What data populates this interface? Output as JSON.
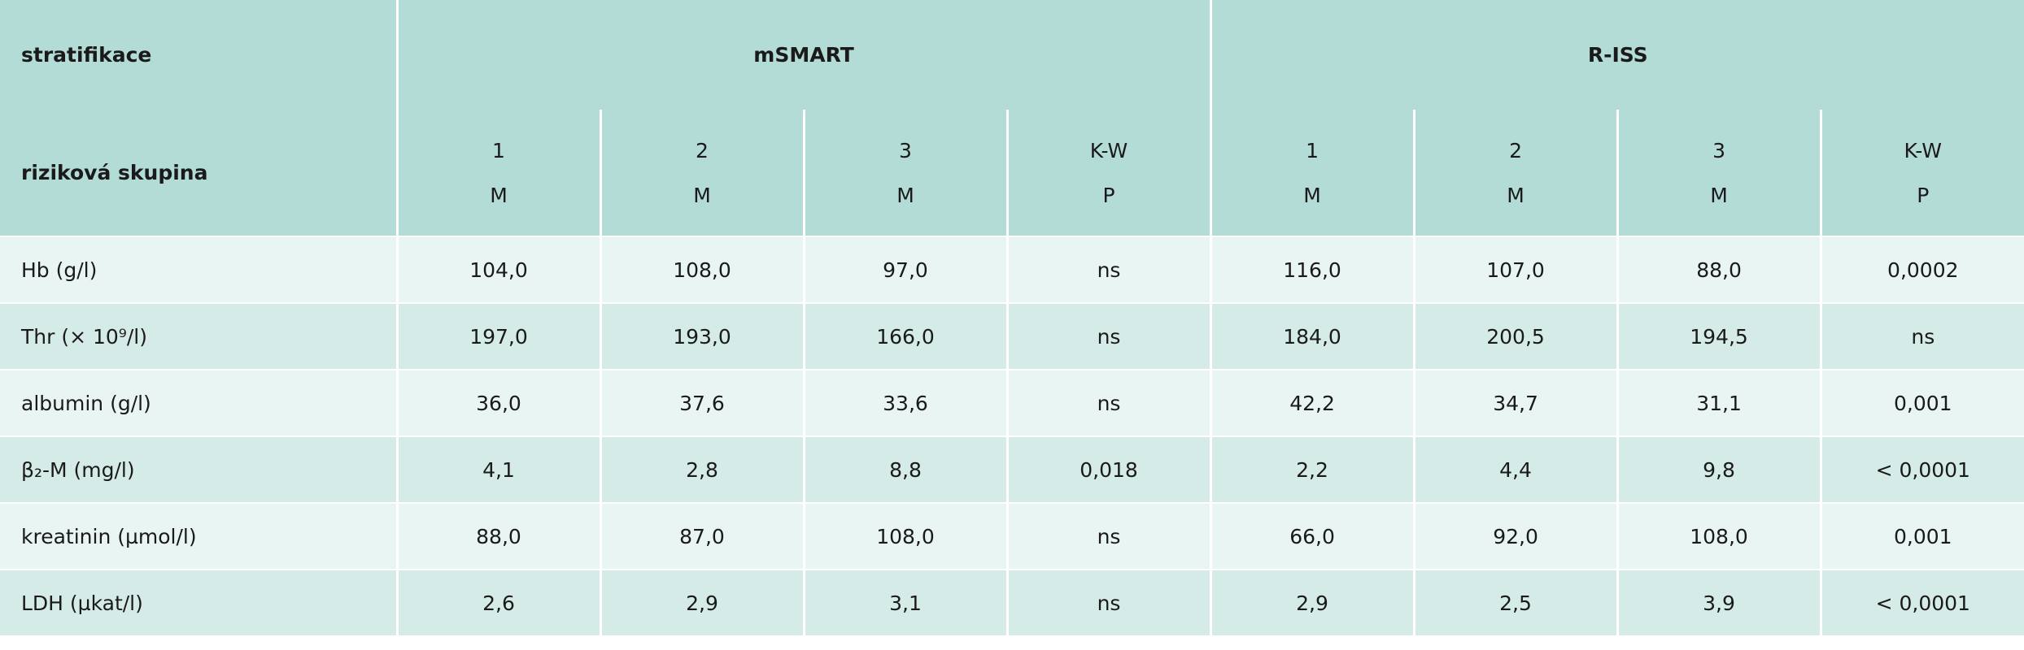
{
  "table": {
    "header": {
      "stratification_label": "stratifikace",
      "group_label": "riziková skupina",
      "groups": [
        {
          "name": "mSMART",
          "columns": [
            {
              "label": "1",
              "stat": "M"
            },
            {
              "label": "2",
              "stat": "M"
            },
            {
              "label": "3",
              "stat": "M"
            },
            {
              "label": "K-W",
              "stat": "P"
            }
          ]
        },
        {
          "name": "R-ISS",
          "columns": [
            {
              "label": "1",
              "stat": "M"
            },
            {
              "label": "2",
              "stat": "M"
            },
            {
              "label": "3",
              "stat": "M"
            },
            {
              "label": "K-W",
              "stat": "P"
            }
          ]
        }
      ]
    },
    "rows": [
      {
        "label": "Hb (g/l)",
        "cells": [
          "104,0",
          "108,0",
          "97,0",
          "ns",
          "116,0",
          "107,0",
          "88,0",
          "0,0002"
        ]
      },
      {
        "label": "Thr (× 10⁹/l)",
        "cells": [
          "197,0",
          "193,0",
          "166,0",
          "ns",
          "184,0",
          "200,5",
          "194,5",
          "ns"
        ]
      },
      {
        "label": "albumin (g/l)",
        "cells": [
          "36,0",
          "37,6",
          "33,6",
          "ns",
          "42,2",
          "34,7",
          "31,1",
          "0,001"
        ]
      },
      {
        "label": "β₂-M (mg/l)",
        "cells": [
          "4,1",
          "2,8",
          "8,8",
          "0,018",
          "2,2",
          "4,4",
          "9,8",
          "< 0,0001"
        ]
      },
      {
        "label": "kreatinin (µmol/l)",
        "cells": [
          "88,0",
          "87,0",
          "108,0",
          "ns",
          "66,0",
          "92,0",
          "108,0",
          "0,001"
        ]
      },
      {
        "label": "LDH (µkat/l)",
        "cells": [
          "2,6",
          "2,9",
          "3,1",
          "ns",
          "2,9",
          "2,5",
          "3,9",
          "< 0,0001"
        ]
      }
    ]
  }
}
